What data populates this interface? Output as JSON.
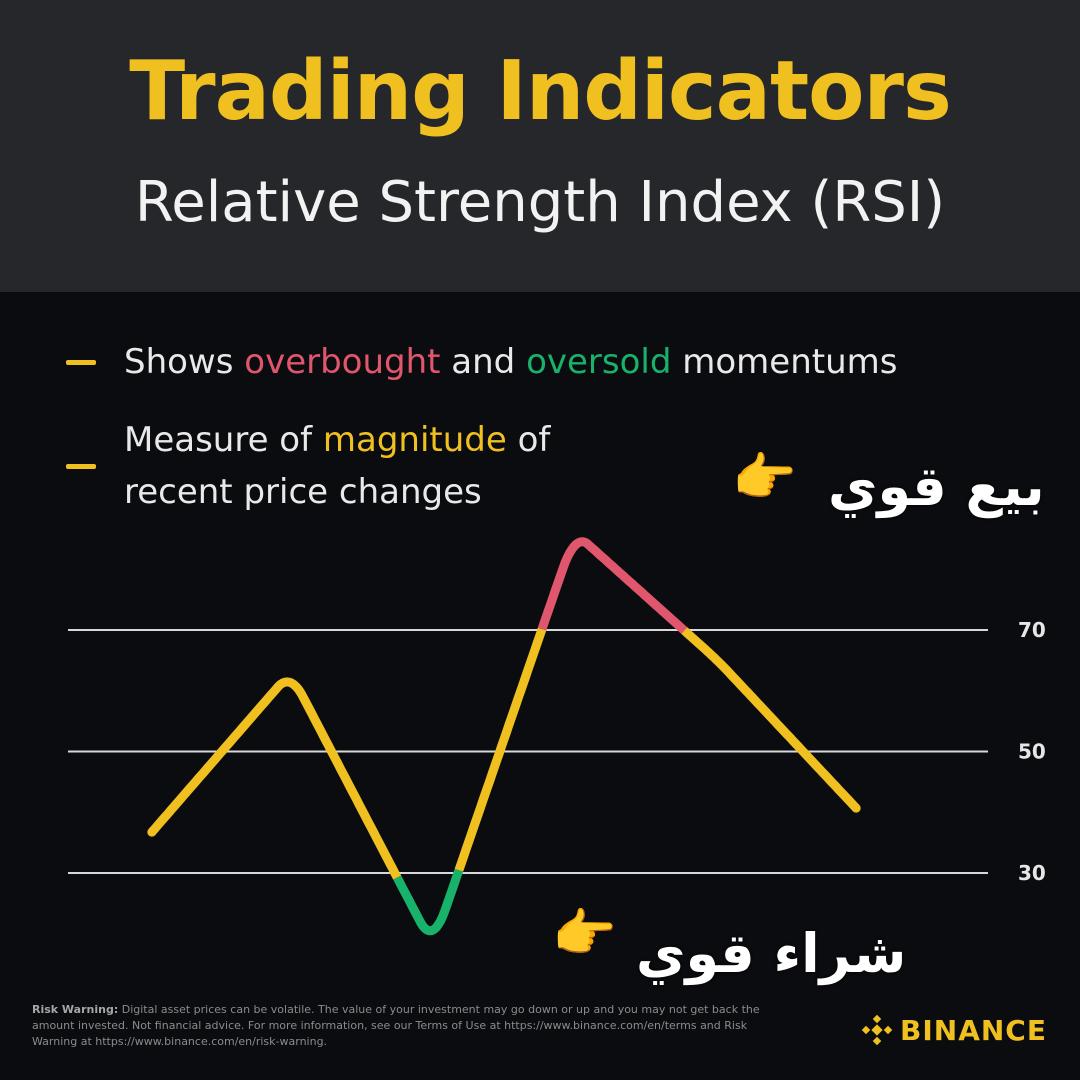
{
  "header": {
    "title": "Trading Indicators",
    "subtitle": "Relative Strength Index (RSI)"
  },
  "bullets": [
    {
      "pre": "Shows ",
      "hl1": "overbought",
      "mid": " and ",
      "hl2": "oversold",
      "post": " momentums"
    },
    {
      "pre": "Measure of ",
      "hl": "magnitude",
      "post": " of",
      "line2": "recent price changes"
    }
  ],
  "annotations": {
    "sell": {
      "text": "بيع قوي",
      "icon": "pointing-hand-icon"
    },
    "buy": {
      "text": "شراء قوي",
      "icon": "pointing-hand-icon"
    }
  },
  "risk_warning": {
    "label": "Risk Warning:",
    "text": " Digital asset prices can be volatile. The value of your investment may go down or up and you may not get back the amount invested. Not financial advice. For more information, see our Terms of Use at https://www.binance.com/en/terms and Risk Warning at https://www.binance.com/en/risk-warning."
  },
  "brand": {
    "name": "BINANCE",
    "icon": "binance-logo-icon"
  },
  "colors": {
    "accent": "#f0c020",
    "overbought": "#e0566c",
    "oversold": "#19b26b",
    "gridline": "#d8d8d8"
  },
  "chart_data": {
    "type": "line",
    "title": "Relative Strength Index (RSI)",
    "ylim": [
      15,
      90
    ],
    "yticks": [
      {
        "label": "70",
        "value": 70
      },
      {
        "label": "50",
        "value": 50
      },
      {
        "label": "30",
        "value": 30
      }
    ],
    "overbought_level": 70,
    "oversold_level": 30,
    "series": [
      {
        "x": [
          0,
          1,
          2,
          3,
          4,
          5
        ],
        "values": [
          36,
          63,
          18,
          86,
          65,
          40
        ]
      }
    ]
  }
}
